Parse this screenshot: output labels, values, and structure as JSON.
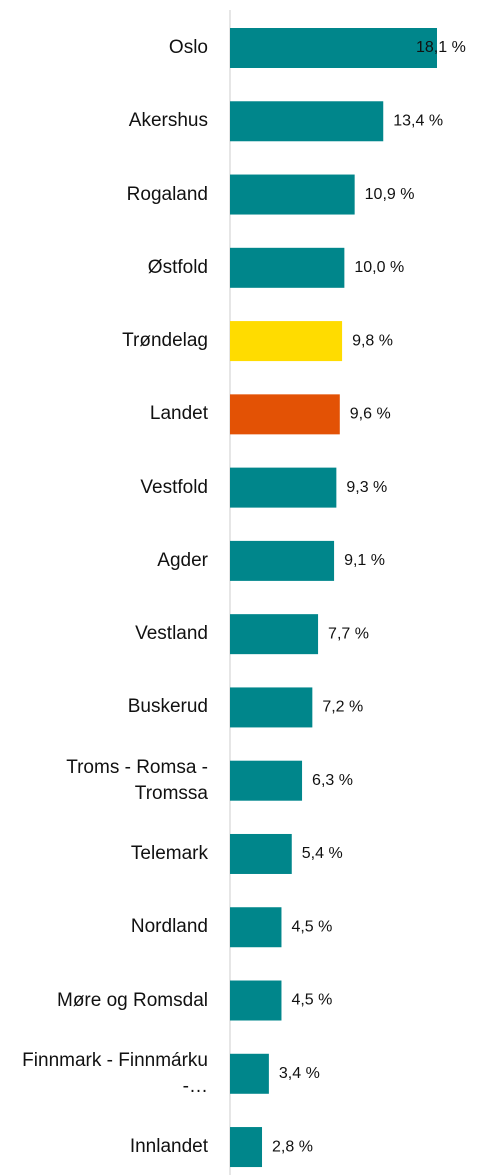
{
  "chart_data": {
    "type": "bar",
    "orientation": "horizontal",
    "categories": [
      "Oslo",
      "Akershus",
      "Rogaland",
      "Østfold",
      "Trøndelag",
      "Landet",
      "Vestfold",
      "Agder",
      "Vestland",
      "Buskerud",
      "Troms - Romsa - Tromssa",
      "Telemark",
      "Nordland",
      "Møre og Romsdal",
      "Finnmark - Finnmárku -…",
      "Innlandet"
    ],
    "values": [
      18.1,
      13.4,
      10.9,
      10.0,
      9.8,
      9.6,
      9.3,
      9.1,
      7.7,
      7.2,
      6.3,
      5.4,
      4.5,
      4.5,
      3.4,
      2.8
    ],
    "value_labels": [
      "18,1 %",
      "13,4 %",
      "10,9 %",
      "10,0 %",
      "9,8 %",
      "9,6 %",
      "9,3 %",
      "9,1 %",
      "7,7 %",
      "7,2 %",
      "6,3 %",
      "5,4 %",
      "4,5 %",
      "4,5 %",
      "3,4 %",
      "2,8 %"
    ],
    "colors": [
      "#00868b",
      "#00868b",
      "#00868b",
      "#00868b",
      "#ffdc00",
      "#e35205",
      "#00868b",
      "#00868b",
      "#00868b",
      "#00868b",
      "#00868b",
      "#00868b",
      "#00868b",
      "#00868b",
      "#00868b",
      "#00868b"
    ]
  }
}
